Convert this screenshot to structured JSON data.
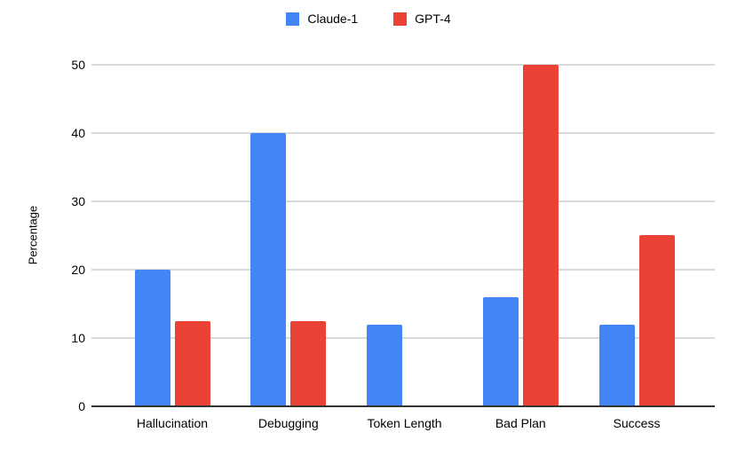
{
  "chart_data": {
    "type": "bar",
    "categories": [
      "Hallucination",
      "Debugging",
      "Token Length",
      "Bad Plan",
      "Success"
    ],
    "series": [
      {
        "name": "Claude-1",
        "color": "#4285F4",
        "values": [
          20,
          40,
          12,
          16,
          12
        ]
      },
      {
        "name": "GPT-4",
        "color": "#EA4335",
        "values": [
          12.5,
          12.5,
          0,
          50,
          25
        ]
      }
    ],
    "ylabel": "Percentage",
    "yticks": [
      0,
      10,
      20,
      30,
      40,
      50
    ],
    "ylim": [
      0,
      50
    ],
    "grid": true,
    "legend_position": "top"
  },
  "colors": {
    "background": "#FFFFFF",
    "gridline": "#D9D9D9",
    "axis_line": "#333333",
    "text": "#000000",
    "claude_blue": "#4285F4",
    "gpt_red": "#EA4335"
  }
}
